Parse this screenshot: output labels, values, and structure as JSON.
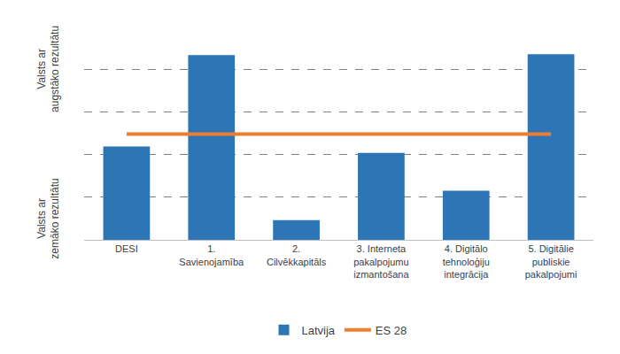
{
  "chart_data": {
    "type": "bar",
    "categories": [
      "DESI",
      "1. Savienojamība",
      "2. Cilvēkkapitāls",
      "3. Interneta pakalpojumu izmantošana",
      "4. Digitālo tehnoloģiju integrācija",
      "5. Digitālie publiskie pakalpojumi"
    ],
    "series": [
      {
        "name": "Latvija",
        "type": "bar",
        "color": "#2e75b6",
        "values": [
          2.19,
          4.33,
          0.46,
          2.04,
          1.15,
          4.35
        ]
      },
      {
        "name": "ES 28",
        "type": "line",
        "color": "#ed7d31",
        "values": [
          2.48,
          2.48,
          2.48,
          2.48,
          2.48,
          2.48
        ]
      }
    ],
    "ylim": [
      0,
      5
    ],
    "yticks": [
      0,
      1,
      2,
      3,
      4,
      5
    ],
    "grid": true,
    "tick_labels": "x",
    "legend": "bottom",
    "annotations": [
      "Valsts ar augstāko rezultātu",
      "Valsts ar zemāko rezultātu"
    ]
  }
}
